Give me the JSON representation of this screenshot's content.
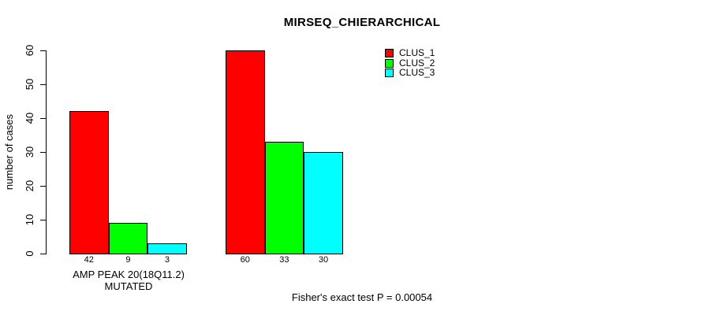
{
  "chart_data": {
    "type": "bar",
    "title": "MIRSEQ_CHIERARCHICAL",
    "xlabel": "",
    "ylabel": "number of cases",
    "ylim": [
      0,
      60
    ],
    "yticks": [
      0,
      10,
      20,
      30,
      40,
      50,
      60
    ],
    "grid": false,
    "legend_position": "top-right",
    "categories": [
      "AMP PEAK 20(18Q11.2) MUTATED",
      ""
    ],
    "series": [
      {
        "name": "CLUS_1",
        "color": "#ff0000",
        "values": [
          42,
          60
        ]
      },
      {
        "name": "CLUS_2",
        "color": "#00ff00",
        "values": [
          9,
          33
        ]
      },
      {
        "name": "CLUS_3",
        "color": "#00ffff",
        "values": [
          3,
          30
        ]
      }
    ],
    "bar_value_labels": [
      [
        42,
        9,
        3
      ],
      [
        60,
        33,
        30
      ]
    ],
    "annotation": "Fisher's exact test P = 0.00054"
  }
}
